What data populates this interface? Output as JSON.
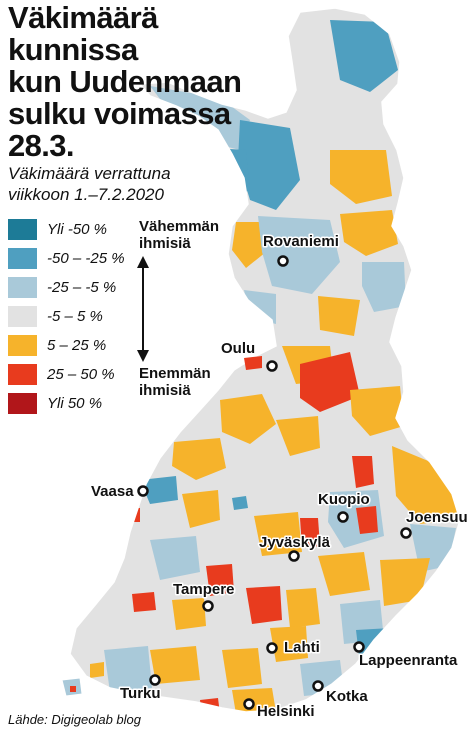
{
  "title": "Väkimäärä kunnissa\nkun Uudenmaan\nsulku voimassa\n28.3.",
  "legend": {
    "caption_line1": "Väkimäärä verrattuna",
    "caption_line2": "viikkoon 1.–7.2.2020",
    "items": [
      {
        "label": "Yli -50 %",
        "color": "#1d7b97"
      },
      {
        "label": "-50 – -25 %",
        "color": "#4f9fc0"
      },
      {
        "label": "-25 – -5 %",
        "color": "#a9c9d9"
      },
      {
        "label": "-5 – 5 %",
        "color": "#e2e2e2"
      },
      {
        "label": "5 – 25 %",
        "color": "#f6b32b"
      },
      {
        "label": "25 – 50 %",
        "color": "#e83b1e"
      },
      {
        "label": "Yli 50 %",
        "color": "#b1161a"
      }
    ],
    "less_people_line1": "Vähemmän",
    "less_people_line2": "ihmisiä",
    "more_people_line1": "Enemmän",
    "more_people_line2": "ihmisiä"
  },
  "cities": [
    {
      "name": "Rovaniemi"
    },
    {
      "name": "Oulu"
    },
    {
      "name": "Vaasa"
    },
    {
      "name": "Kuopio"
    },
    {
      "name": "Joensuu"
    },
    {
      "name": "Jyväskylä"
    },
    {
      "name": "Tampere"
    },
    {
      "name": "Lahti"
    },
    {
      "name": "Lappeenranta"
    },
    {
      "name": "Turku"
    },
    {
      "name": "Kotka"
    },
    {
      "name": "Helsinki"
    }
  ],
  "source": "Lähde: Digigeolab blog"
}
